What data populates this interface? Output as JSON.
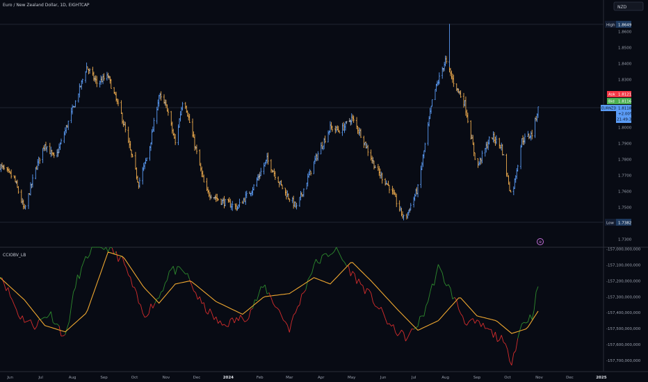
{
  "header": {
    "symbol_title": "Euro / New Zealand Dollar, 1D, EIGHTCAP"
  },
  "scale_button": {
    "label": "NZD"
  },
  "colors": {
    "background": "#080b14",
    "up_bar": "#5b9cf6",
    "down_bar": "#f0ad4e",
    "neutral_bar": "#b8b8b8",
    "osc_up": "#2e8b2e",
    "osc_down": "#d62d2d",
    "signal": "#f0a830",
    "ask": "#f23645",
    "bid": "#4caf50",
    "last": "#5b9cf6"
  },
  "price_axis": {
    "ticks": [
      "1.8600",
      "1.8500",
      "1.8400",
      "1.8300",
      "1.8200",
      "1.8100",
      "1.8000",
      "1.7900",
      "1.7800",
      "1.7700",
      "1.7600",
      "1.7500",
      "1.7400",
      "1.7300"
    ],
    "high_label": "High",
    "high_value": "1.8649",
    "low_label": "Low",
    "low_value": "1.7382",
    "ask_label": "Ask",
    "ask_value": "1.8121",
    "bid_label": "Bid",
    "bid_value": "1.8116",
    "last_symbol": "EURNZD",
    "last_value": "1.8118",
    "last_change": "+2.00%",
    "countdown": "21:49:38"
  },
  "indicator": {
    "name": "CCIOBV_LB",
    "ticks": [
      "-157,000,000,000",
      "-157,100,000,000",
      "-157,200,000,000",
      "-157,300,000,000",
      "-157,400,000,000",
      "-157,500,000,000",
      "-157,600,000,000",
      "-157,700,000,000"
    ]
  },
  "time_axis": {
    "labels": [
      "Jun",
      "Jul",
      "Aug",
      "Sep",
      "Oct",
      "Nov",
      "Dec",
      "2024",
      "Feb",
      "Mar",
      "Apr",
      "May",
      "Jun",
      "Jul",
      "Aug",
      "Sep",
      "Oct",
      "Nov",
      "Dec",
      "2025"
    ]
  },
  "chart_data": {
    "type": "candlestick",
    "symbol": "EURNZD",
    "timeframe": "1D",
    "price_ylim": [
      1.732,
      1.869
    ],
    "high": 1.8649,
    "low": 1.7382,
    "last": 1.8118,
    "price_path": [
      {
        "date": "2023-05-22",
        "close": 1.776
      },
      {
        "date": "2023-06-05",
        "close": 1.768
      },
      {
        "date": "2023-06-15",
        "close": 1.748
      },
      {
        "date": "2023-06-26",
        "close": 1.774
      },
      {
        "date": "2023-07-05",
        "close": 1.79
      },
      {
        "date": "2023-07-15",
        "close": 1.78
      },
      {
        "date": "2023-07-25",
        "close": 1.798
      },
      {
        "date": "2023-08-05",
        "close": 1.818
      },
      {
        "date": "2023-08-15",
        "close": 1.838
      },
      {
        "date": "2023-08-25",
        "close": 1.828
      },
      {
        "date": "2023-09-05",
        "close": 1.832
      },
      {
        "date": "2023-09-18",
        "close": 1.808
      },
      {
        "date": "2023-10-05",
        "close": 1.765
      },
      {
        "date": "2023-10-15",
        "close": 1.785
      },
      {
        "date": "2023-10-25",
        "close": 1.82
      },
      {
        "date": "2023-11-02",
        "close": 1.812
      },
      {
        "date": "2023-11-10",
        "close": 1.79
      },
      {
        "date": "2023-11-18",
        "close": 1.82
      },
      {
        "date": "2023-11-28",
        "close": 1.792
      },
      {
        "date": "2023-12-10",
        "close": 1.76
      },
      {
        "date": "2023-12-25",
        "close": 1.754
      },
      {
        "date": "2024-01-10",
        "close": 1.75
      },
      {
        "date": "2024-01-25",
        "close": 1.762
      },
      {
        "date": "2024-02-08",
        "close": 1.78
      },
      {
        "date": "2024-02-25",
        "close": 1.76
      },
      {
        "date": "2024-03-08",
        "close": 1.75
      },
      {
        "date": "2024-03-25",
        "close": 1.778
      },
      {
        "date": "2024-04-10",
        "close": 1.8
      },
      {
        "date": "2024-04-20",
        "close": 1.798
      },
      {
        "date": "2024-05-01",
        "close": 1.806
      },
      {
        "date": "2024-05-10",
        "close": 1.796
      },
      {
        "date": "2024-05-25",
        "close": 1.774
      },
      {
        "date": "2024-06-08",
        "close": 1.762
      },
      {
        "date": "2024-06-22",
        "close": 1.742
      },
      {
        "date": "2024-07-05",
        "close": 1.762
      },
      {
        "date": "2024-07-20",
        "close": 1.82
      },
      {
        "date": "2024-08-01",
        "close": 1.842
      },
      {
        "date": "2024-08-08",
        "close": 1.83
      },
      {
        "date": "2024-08-20",
        "close": 1.815
      },
      {
        "date": "2024-09-01",
        "close": 1.775
      },
      {
        "date": "2024-09-15",
        "close": 1.795
      },
      {
        "date": "2024-09-25",
        "close": 1.788
      },
      {
        "date": "2024-10-05",
        "close": 1.756
      },
      {
        "date": "2024-10-15",
        "close": 1.792
      },
      {
        "date": "2024-10-25",
        "close": 1.796
      },
      {
        "date": "2024-10-31",
        "close": 1.8118
      }
    ],
    "indicator_ylim": [
      -157760000000,
      -156990000000
    ],
    "signal_path": [
      {
        "date": "2023-05-22",
        "value": -157180000000
      },
      {
        "date": "2023-06-15",
        "value": -157320000000
      },
      {
        "date": "2023-07-05",
        "value": -157480000000
      },
      {
        "date": "2023-07-25",
        "value": -157520000000
      },
      {
        "date": "2023-08-15",
        "value": -157400000000
      },
      {
        "date": "2023-09-05",
        "value": -157020000000
      },
      {
        "date": "2023-09-20",
        "value": -157050000000
      },
      {
        "date": "2023-10-10",
        "value": -157240000000
      },
      {
        "date": "2023-10-25",
        "value": -157340000000
      },
      {
        "date": "2023-11-10",
        "value": -157220000000
      },
      {
        "date": "2023-11-25",
        "value": -157200000000
      },
      {
        "date": "2023-12-20",
        "value": -157330000000
      },
      {
        "date": "2024-01-15",
        "value": -157410000000
      },
      {
        "date": "2024-02-05",
        "value": -157300000000
      },
      {
        "date": "2024-03-01",
        "value": -157280000000
      },
      {
        "date": "2024-03-25",
        "value": -157180000000
      },
      {
        "date": "2024-04-10",
        "value": -157220000000
      },
      {
        "date": "2024-05-01",
        "value": -157080000000
      },
      {
        "date": "2024-05-20",
        "value": -157200000000
      },
      {
        "date": "2024-06-15",
        "value": -157380000000
      },
      {
        "date": "2024-07-05",
        "value": -157510000000
      },
      {
        "date": "2024-07-25",
        "value": -157450000000
      },
      {
        "date": "2024-08-15",
        "value": -157300000000
      },
      {
        "date": "2024-09-01",
        "value": -157420000000
      },
      {
        "date": "2024-09-20",
        "value": -157450000000
      },
      {
        "date": "2024-10-05",
        "value": -157530000000
      },
      {
        "date": "2024-10-20",
        "value": -157500000000
      },
      {
        "date": "2024-10-31",
        "value": -157390000000
      }
    ],
    "oscillator_path": [
      {
        "date": "2023-05-22",
        "value": -157150000000
      },
      {
        "date": "2023-06-10",
        "value": -157420000000
      },
      {
        "date": "2023-06-25",
        "value": -157480000000
      },
      {
        "date": "2023-07-10",
        "value": -157400000000
      },
      {
        "date": "2023-07-25",
        "value": -157560000000
      },
      {
        "date": "2023-08-05",
        "value": -157200000000
      },
      {
        "date": "2023-08-20",
        "value": -156990000000
      },
      {
        "date": "2023-09-05",
        "value": -156990000000
      },
      {
        "date": "2023-09-20",
        "value": -157080000000
      },
      {
        "date": "2023-10-10",
        "value": -157420000000
      },
      {
        "date": "2023-10-25",
        "value": -157300000000
      },
      {
        "date": "2023-11-05",
        "value": -157130000000
      },
      {
        "date": "2023-11-20",
        "value": -157150000000
      },
      {
        "date": "2023-12-05",
        "value": -157340000000
      },
      {
        "date": "2023-12-25",
        "value": -157480000000
      },
      {
        "date": "2024-01-20",
        "value": -157420000000
      },
      {
        "date": "2024-02-05",
        "value": -157230000000
      },
      {
        "date": "2024-03-01",
        "value": -157500000000
      },
      {
        "date": "2024-03-25",
        "value": -157100000000
      },
      {
        "date": "2024-04-15",
        "value": -157000000000
      },
      {
        "date": "2024-05-01",
        "value": -157150000000
      },
      {
        "date": "2024-05-20",
        "value": -157300000000
      },
      {
        "date": "2024-06-10",
        "value": -157500000000
      },
      {
        "date": "2024-06-25",
        "value": -157560000000
      },
      {
        "date": "2024-07-10",
        "value": -157420000000
      },
      {
        "date": "2024-07-25",
        "value": -157120000000
      },
      {
        "date": "2024-08-05",
        "value": -157250000000
      },
      {
        "date": "2024-08-20",
        "value": -157450000000
      },
      {
        "date": "2024-09-05",
        "value": -157480000000
      },
      {
        "date": "2024-09-25",
        "value": -157570000000
      },
      {
        "date": "2024-10-05",
        "value": -157700000000
      },
      {
        "date": "2024-10-15",
        "value": -157470000000
      },
      {
        "date": "2024-10-25",
        "value": -157420000000
      },
      {
        "date": "2024-10-31",
        "value": -157230000000
      }
    ]
  }
}
